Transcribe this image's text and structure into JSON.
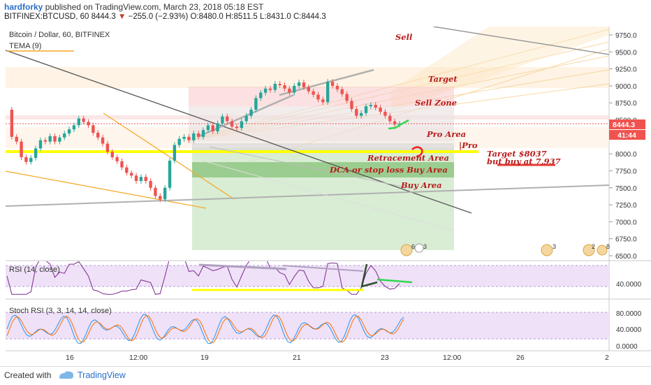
{
  "header": {
    "author": "hardforky",
    "published_text": "published on TradingView.com, March 23, 2018 05:18 EST",
    "symbol": "BITFINEX:BTCUSD, 60",
    "last": "8444.3",
    "arrow": "▼",
    "change": "−255.0 (−2.93%)",
    "ohlc": "O:8480.0 H:8511.5 L:8431.0 C:8444.3"
  },
  "main_pane": {
    "title": "Bitcoin / Dollar, 60, BITFINEX",
    "indicator": "TEMA (9)",
    "last_price_tag": "8444.3",
    "countdown_tag": "41:44",
    "price_ticks": [
      "9750.0",
      "9500.0",
      "9250.0",
      "9000.0",
      "8750.0",
      "8500.0",
      "8250.0",
      "8000.0",
      "7750.0",
      "7500.0",
      "7250.0",
      "7000.0",
      "6750.0",
      "6500.0"
    ],
    "annotations": {
      "sell": "Sell",
      "target": "Target",
      "sell_zone": "Sell Zone",
      "pro_area": "Pro Area",
      "pro_marker": "|Pro",
      "retracement": "Retracement Area",
      "dca": "DCA or stop loss Buy Area",
      "buy_area": "Buy Area",
      "target_8037": "Target $8037",
      "but_buy": "but buy at 7,937"
    },
    "events": [
      {
        "count": "6"
      },
      {
        "count": "3"
      },
      {
        "count": "3"
      },
      {
        "count": "2"
      },
      {
        "count": "8"
      }
    ]
  },
  "rsi_pane": {
    "title": "RSI (14, close)",
    "ticks": [
      "40.0000"
    ]
  },
  "stoch_pane": {
    "title": "Stoch RSI (3, 3, 14, 14, close)",
    "ticks": [
      "80.0000",
      "40.0000",
      "0.0000"
    ]
  },
  "time_axis": {
    "labels": [
      "16",
      "12:00",
      "19",
      "21",
      "23",
      "12:00",
      "26",
      "2"
    ]
  },
  "footer": {
    "created_with": "Created with",
    "brand": "TradingView"
  },
  "colors": {
    "up_candle": "#26a69a",
    "down_candle": "#ef5350",
    "highlight_yellow": "#ffff00",
    "buy_green": "#4caf50",
    "sell_red": "#f8bbbb",
    "annotation_red": "#b71c1c",
    "rsi_fill": "#e8d8f5",
    "rsi_line": "#7b2a8f"
  },
  "chart_data": {
    "type": "line",
    "title": "Bitcoin / Dollar, 60, BITFINEX",
    "y_axis_range": [
      6400,
      9900
    ],
    "price_path": [
      [
        "Mar 15 08:00",
        8650
      ],
      [
        "Mar 15 10:00",
        8250
      ],
      [
        "Mar 15 12:00",
        8180
      ],
      [
        "Mar 15 14:00",
        7950
      ],
      [
        "Mar 15 16:00",
        7880
      ],
      [
        "Mar 15 18:00",
        7940
      ],
      [
        "Mar 15 20:00",
        8080
      ],
      [
        "Mar 15 22:00",
        8200
      ],
      [
        "Mar 16 00:00",
        8180
      ],
      [
        "Mar 16 02:00",
        8260
      ],
      [
        "Mar 16 04:00",
        8180
      ],
      [
        "Mar 16 06:00",
        8240
      ],
      [
        "Mar 16 08:00",
        8300
      ],
      [
        "Mar 16 10:00",
        8360
      ],
      [
        "Mar 16 12:00",
        8420
      ],
      [
        "Mar 16 14:00",
        8520
      ],
      [
        "Mar 16 16:00",
        8470
      ],
      [
        "Mar 16 18:00",
        8420
      ],
      [
        "Mar 16 20:00",
        8310
      ],
      [
        "Mar 16 22:00",
        8240
      ],
      [
        "Mar 17 00:00",
        8150
      ],
      [
        "Mar 17 02:00",
        8030
      ],
      [
        "Mar 17 04:00",
        7950
      ],
      [
        "Mar 17 06:00",
        7890
      ],
      [
        "Mar 17 08:00",
        7800
      ],
      [
        "Mar 17 10:00",
        7720
      ],
      [
        "Mar 17 12:00",
        7680
      ],
      [
        "Mar 17 14:00",
        7600
      ],
      [
        "Mar 17 16:00",
        7660
      ],
      [
        "Mar 17 18:00",
        7600
      ],
      [
        "Mar 17 20:00",
        7500
      ],
      [
        "Mar 17 22:00",
        7380
      ],
      [
        "Mar 18 00:00",
        7330
      ],
      [
        "Mar 18 02:00",
        7500
      ],
      [
        "Mar 18 04:00",
        7900
      ],
      [
        "Mar 18 06:00",
        8130
      ],
      [
        "Mar 18 08:00",
        8220
      ],
      [
        "Mar 18 10:00",
        8250
      ],
      [
        "Mar 18 12:00",
        8200
      ],
      [
        "Mar 18 14:00",
        8300
      ],
      [
        "Mar 18 16:00",
        8250
      ],
      [
        "Mar 18 18:00",
        8350
      ],
      [
        "Mar 18 20:00",
        8420
      ],
      [
        "Mar 18 22:00",
        8330
      ],
      [
        "Mar 19 00:00",
        8450
      ],
      [
        "Mar 19 02:00",
        8550
      ],
      [
        "Mar 19 04:00",
        8480
      ],
      [
        "Mar 19 06:00",
        8400
      ],
      [
        "Mar 19 08:00",
        8380
      ],
      [
        "Mar 19 10:00",
        8480
      ],
      [
        "Mar 19 12:00",
        8560
      ],
      [
        "Mar 19 14:00",
        8650
      ],
      [
        "Mar 19 16:00",
        8820
      ],
      [
        "Mar 19 18:00",
        8900
      ],
      [
        "Mar 19 20:00",
        8960
      ],
      [
        "Mar 19 22:00",
        8940
      ],
      [
        "Mar 20 00:00",
        9030
      ],
      [
        "Mar 20 02:00",
        9010
      ],
      [
        "Mar 20 04:00",
        8960
      ],
      [
        "Mar 20 06:00",
        8900
      ],
      [
        "Mar 20 08:00",
        9000
      ],
      [
        "Mar 20 10:00",
        9050
      ],
      [
        "Mar 20 12:00",
        8980
      ],
      [
        "Mar 20 14:00",
        8920
      ],
      [
        "Mar 20 16:00",
        8870
      ],
      [
        "Mar 20 18:00",
        8800
      ],
      [
        "Mar 20 20:00",
        8760
      ],
      [
        "Mar 20 22:00",
        9060
      ],
      [
        "Mar 21 00:00",
        9000
      ],
      [
        "Mar 21 02:00",
        8950
      ],
      [
        "Mar 21 04:00",
        8880
      ],
      [
        "Mar 21 06:00",
        8780
      ],
      [
        "Mar 21 08:00",
        8660
      ],
      [
        "Mar 21 10:00",
        8560
      ],
      [
        "Mar 21 12:00",
        8600
      ],
      [
        "Mar 21 14:00",
        8700
      ],
      [
        "Mar 21 16:00",
        8720
      ],
      [
        "Mar 21 18:00",
        8680
      ],
      [
        "Mar 21 20:00",
        8620
      ],
      [
        "Mar 21 22:00",
        8560
      ],
      [
        "Mar 22 00:00",
        8480
      ],
      [
        "Mar 22 02:00",
        8430
      ],
      [
        "Mar 22 04:00",
        8444
      ]
    ]
  }
}
